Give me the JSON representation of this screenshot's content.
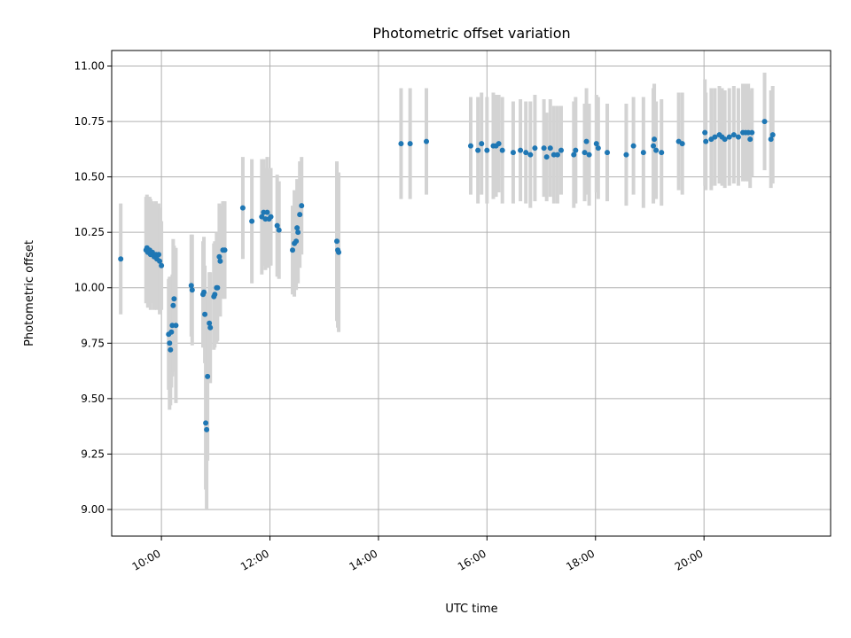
{
  "chart_data": {
    "type": "scatter",
    "title": "Photometric offset variation",
    "xlabel": "UTC time",
    "ylabel": "Photometric offset",
    "xlim": [
      "09:05",
      "22:20"
    ],
    "ylim": [
      8.88,
      11.07
    ],
    "x_ticks": [
      "10:00",
      "12:00",
      "14:00",
      "16:00",
      "18:00",
      "20:00"
    ],
    "y_ticks": [
      "9.00",
      "9.25",
      "9.50",
      "9.75",
      "10.00",
      "10.25",
      "10.50",
      "10.75",
      "11.00"
    ],
    "grid": true,
    "marker_color": "#1f77b4",
    "errorbar_color": "#d3d3d3",
    "points": [
      {
        "x": "09:15",
        "y": 10.13,
        "err": 0.25
      },
      {
        "x": "09:43",
        "y": 10.17,
        "err": 0.24
      },
      {
        "x": "09:44",
        "y": 10.18,
        "err": 0.24
      },
      {
        "x": "09:45",
        "y": 10.16,
        "err": 0.25
      },
      {
        "x": "09:47",
        "y": 10.17,
        "err": 0.24
      },
      {
        "x": "09:48",
        "y": 10.15,
        "err": 0.25
      },
      {
        "x": "09:50",
        "y": 10.16,
        "err": 0.23
      },
      {
        "x": "09:52",
        "y": 10.14,
        "err": 0.24
      },
      {
        "x": "09:54",
        "y": 10.15,
        "err": 0.24
      },
      {
        "x": "09:55",
        "y": 10.13,
        "err": 0.23
      },
      {
        "x": "09:57",
        "y": 10.15,
        "err": 0.23
      },
      {
        "x": "09:58",
        "y": 10.12,
        "err": 0.24
      },
      {
        "x": "10:00",
        "y": 10.1,
        "err": 0.2
      },
      {
        "x": "10:08",
        "y": 9.79,
        "err": 0.25
      },
      {
        "x": "10:09",
        "y": 9.75,
        "err": 0.3
      },
      {
        "x": "10:10",
        "y": 9.72,
        "err": 0.25
      },
      {
        "x": "10:11",
        "y": 9.8,
        "err": 0.25
      },
      {
        "x": "10:12",
        "y": 9.83,
        "err": 0.23
      },
      {
        "x": "10:13",
        "y": 9.92,
        "err": 0.3
      },
      {
        "x": "10:14",
        "y": 9.95,
        "err": 0.24
      },
      {
        "x": "10:16",
        "y": 9.83,
        "err": 0.35
      },
      {
        "x": "10:33",
        "y": 10.01,
        "err": 0.23
      },
      {
        "x": "10:34",
        "y": 9.99,
        "err": 0.25
      },
      {
        "x": "10:46",
        "y": 9.97,
        "err": 0.24
      },
      {
        "x": "10:47",
        "y": 9.98,
        "err": 0.25
      },
      {
        "x": "10:48",
        "y": 9.88,
        "err": 0.22
      },
      {
        "x": "10:49",
        "y": 9.39,
        "err": 0.3
      },
      {
        "x": "10:50",
        "y": 9.36,
        "err": 0.36
      },
      {
        "x": "10:51",
        "y": 9.6,
        "err": 0.38
      },
      {
        "x": "10:53",
        "y": 9.84,
        "err": 0.23
      },
      {
        "x": "10:54",
        "y": 9.82,
        "err": 0.25
      },
      {
        "x": "10:58",
        "y": 9.96,
        "err": 0.24
      },
      {
        "x": "10:59",
        "y": 9.97,
        "err": 0.24
      },
      {
        "x": "11:01",
        "y": 10.0,
        "err": 0.25
      },
      {
        "x": "11:02",
        "y": 10.0,
        "err": 0.24
      },
      {
        "x": "11:04",
        "y": 10.14,
        "err": 0.24
      },
      {
        "x": "11:05",
        "y": 10.12,
        "err": 0.25
      },
      {
        "x": "11:08",
        "y": 10.17,
        "err": 0.22
      },
      {
        "x": "11:10",
        "y": 10.17,
        "err": 0.22
      },
      {
        "x": "11:30",
        "y": 10.36,
        "err": 0.23
      },
      {
        "x": "11:40",
        "y": 10.3,
        "err": 0.28
      },
      {
        "x": "11:51",
        "y": 10.32,
        "err": 0.26
      },
      {
        "x": "11:53",
        "y": 10.34,
        "err": 0.24
      },
      {
        "x": "11:55",
        "y": 10.31,
        "err": 0.23
      },
      {
        "x": "11:57",
        "y": 10.34,
        "err": 0.25
      },
      {
        "x": "11:59",
        "y": 10.31,
        "err": 0.22
      },
      {
        "x": "12:01",
        "y": 10.32,
        "err": 0.22
      },
      {
        "x": "12:08",
        "y": 10.28,
        "err": 0.23
      },
      {
        "x": "12:10",
        "y": 10.26,
        "err": 0.22
      },
      {
        "x": "12:25",
        "y": 10.17,
        "err": 0.2
      },
      {
        "x": "12:27",
        "y": 10.2,
        "err": 0.24
      },
      {
        "x": "12:29",
        "y": 10.21,
        "err": 0.22
      },
      {
        "x": "12:30",
        "y": 10.27,
        "err": 0.22
      },
      {
        "x": "12:31",
        "y": 10.25,
        "err": 0.23
      },
      {
        "x": "12:33",
        "y": 10.33,
        "err": 0.24
      },
      {
        "x": "12:35",
        "y": 10.37,
        "err": 0.22
      },
      {
        "x": "13:14",
        "y": 10.21,
        "err": 0.36
      },
      {
        "x": "13:15",
        "y": 10.17,
        "err": 0.35
      },
      {
        "x": "13:16",
        "y": 10.16,
        "err": 0.36
      },
      {
        "x": "14:25",
        "y": 10.65,
        "err": 0.25
      },
      {
        "x": "14:35",
        "y": 10.65,
        "err": 0.25
      },
      {
        "x": "14:53",
        "y": 10.66,
        "err": 0.24
      },
      {
        "x": "15:42",
        "y": 10.64,
        "err": 0.22
      },
      {
        "x": "15:50",
        "y": 10.62,
        "err": 0.24
      },
      {
        "x": "15:54",
        "y": 10.65,
        "err": 0.23
      },
      {
        "x": "16:00",
        "y": 10.62,
        "err": 0.24
      },
      {
        "x": "16:07",
        "y": 10.64,
        "err": 0.24
      },
      {
        "x": "16:10",
        "y": 10.64,
        "err": 0.23
      },
      {
        "x": "16:13",
        "y": 10.65,
        "err": 0.22
      },
      {
        "x": "16:17",
        "y": 10.62,
        "err": 0.24
      },
      {
        "x": "16:29",
        "y": 10.61,
        "err": 0.23
      },
      {
        "x": "16:37",
        "y": 10.62,
        "err": 0.23
      },
      {
        "x": "16:43",
        "y": 10.61,
        "err": 0.23
      },
      {
        "x": "16:48",
        "y": 10.6,
        "err": 0.24
      },
      {
        "x": "16:53",
        "y": 10.63,
        "err": 0.24
      },
      {
        "x": "17:03",
        "y": 10.63,
        "err": 0.22
      },
      {
        "x": "17:06",
        "y": 10.59,
        "err": 0.2
      },
      {
        "x": "17:10",
        "y": 10.63,
        "err": 0.22
      },
      {
        "x": "17:14",
        "y": 10.6,
        "err": 0.22
      },
      {
        "x": "17:18",
        "y": 10.6,
        "err": 0.22
      },
      {
        "x": "17:22",
        "y": 10.62,
        "err": 0.2
      },
      {
        "x": "17:36",
        "y": 10.6,
        "err": 0.24
      },
      {
        "x": "17:38",
        "y": 10.62,
        "err": 0.24
      },
      {
        "x": "17:48",
        "y": 10.61,
        "err": 0.22
      },
      {
        "x": "17:50",
        "y": 10.66,
        "err": 0.24
      },
      {
        "x": "17:53",
        "y": 10.6,
        "err": 0.23
      },
      {
        "x": "18:01",
        "y": 10.65,
        "err": 0.22
      },
      {
        "x": "18:03",
        "y": 10.63,
        "err": 0.23
      },
      {
        "x": "18:13",
        "y": 10.61,
        "err": 0.22
      },
      {
        "x": "18:34",
        "y": 10.6,
        "err": 0.23
      },
      {
        "x": "18:42",
        "y": 10.64,
        "err": 0.22
      },
      {
        "x": "18:53",
        "y": 10.61,
        "err": 0.25
      },
      {
        "x": "19:04",
        "y": 10.64,
        "err": 0.26
      },
      {
        "x": "19:05",
        "y": 10.67,
        "err": 0.25
      },
      {
        "x": "19:07",
        "y": 10.62,
        "err": 0.22
      },
      {
        "x": "19:13",
        "y": 10.61,
        "err": 0.24
      },
      {
        "x": "19:32",
        "y": 10.66,
        "err": 0.22
      },
      {
        "x": "19:36",
        "y": 10.65,
        "err": 0.23
      },
      {
        "x": "20:01",
        "y": 10.7,
        "err": 0.24
      },
      {
        "x": "20:02",
        "y": 10.66,
        "err": 0.22
      },
      {
        "x": "20:08",
        "y": 10.67,
        "err": 0.23
      },
      {
        "x": "20:12",
        "y": 10.68,
        "err": 0.22
      },
      {
        "x": "20:17",
        "y": 10.69,
        "err": 0.22
      },
      {
        "x": "20:20",
        "y": 10.68,
        "err": 0.22
      },
      {
        "x": "20:23",
        "y": 10.67,
        "err": 0.22
      },
      {
        "x": "20:28",
        "y": 10.68,
        "err": 0.22
      },
      {
        "x": "20:33",
        "y": 10.69,
        "err": 0.22
      },
      {
        "x": "20:38",
        "y": 10.68,
        "err": 0.22
      },
      {
        "x": "20:43",
        "y": 10.7,
        "err": 0.22
      },
      {
        "x": "20:46",
        "y": 10.7,
        "err": 0.22
      },
      {
        "x": "20:49",
        "y": 10.7,
        "err": 0.22
      },
      {
        "x": "20:51",
        "y": 10.67,
        "err": 0.22
      },
      {
        "x": "20:53",
        "y": 10.7,
        "err": 0.2
      },
      {
        "x": "21:07",
        "y": 10.75,
        "err": 0.22
      },
      {
        "x": "21:14",
        "y": 10.67,
        "err": 0.22
      },
      {
        "x": "21:16",
        "y": 10.69,
        "err": 0.22
      }
    ]
  }
}
